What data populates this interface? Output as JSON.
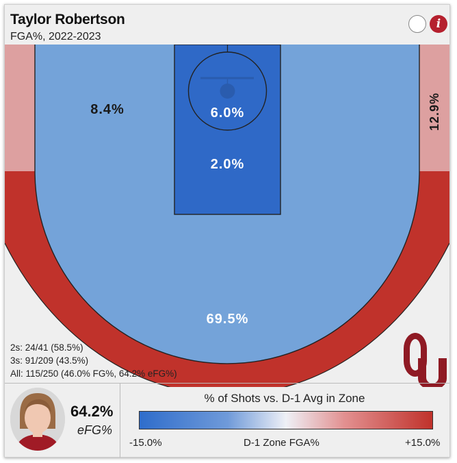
{
  "header": {
    "player_name": "Taylor Robertson",
    "subtitle": "FGA%, 2022-2023",
    "info_label": "i"
  },
  "colors": {
    "far_above": "#c0322b",
    "slightly_above": "#dda0a0",
    "below": "#74a3d9",
    "far_below": "#2f69c7",
    "lines": "#222222"
  },
  "chart_data": {
    "type": "heatmap",
    "description_of_values": "share of field goal attempts by court zone",
    "zones": [
      {
        "zone": "left-corner-three",
        "value": null,
        "label": "",
        "color": "slightly_above"
      },
      {
        "zone": "paint-non-restricted",
        "value": 8.4,
        "label": "8.4%",
        "color": "below"
      },
      {
        "zone": "restricted-area",
        "value": 6.0,
        "label": "6.0%",
        "color": "far_below"
      },
      {
        "zone": "lane",
        "value": 2.0,
        "label": "2.0%",
        "color": "far_below"
      },
      {
        "zone": "right-corner-three",
        "value": 12.9,
        "label": "12.9%",
        "color": "slightly_above"
      },
      {
        "zone": "above-break-three",
        "value": 69.5,
        "label": "69.5%",
        "color": "far_above"
      }
    ],
    "legend": {
      "title": "% of Shots vs. D-1 Avg in Zone",
      "min_label": "-15.0%",
      "center_label": "D-1 Zone FGA%",
      "max_label": "+15.0%",
      "range": [
        -15.0,
        15.0
      ]
    }
  },
  "stats": {
    "twos": "2s: 24/41 (58.5%)",
    "threes": "3s: 91/209 (43.5%)",
    "all": "All: 115/250 (46.0% FG%, 64.2% eFG%)"
  },
  "player_card": {
    "efg_value": "64.2%",
    "efg_label": "eFG%"
  },
  "team_logo": "OU"
}
